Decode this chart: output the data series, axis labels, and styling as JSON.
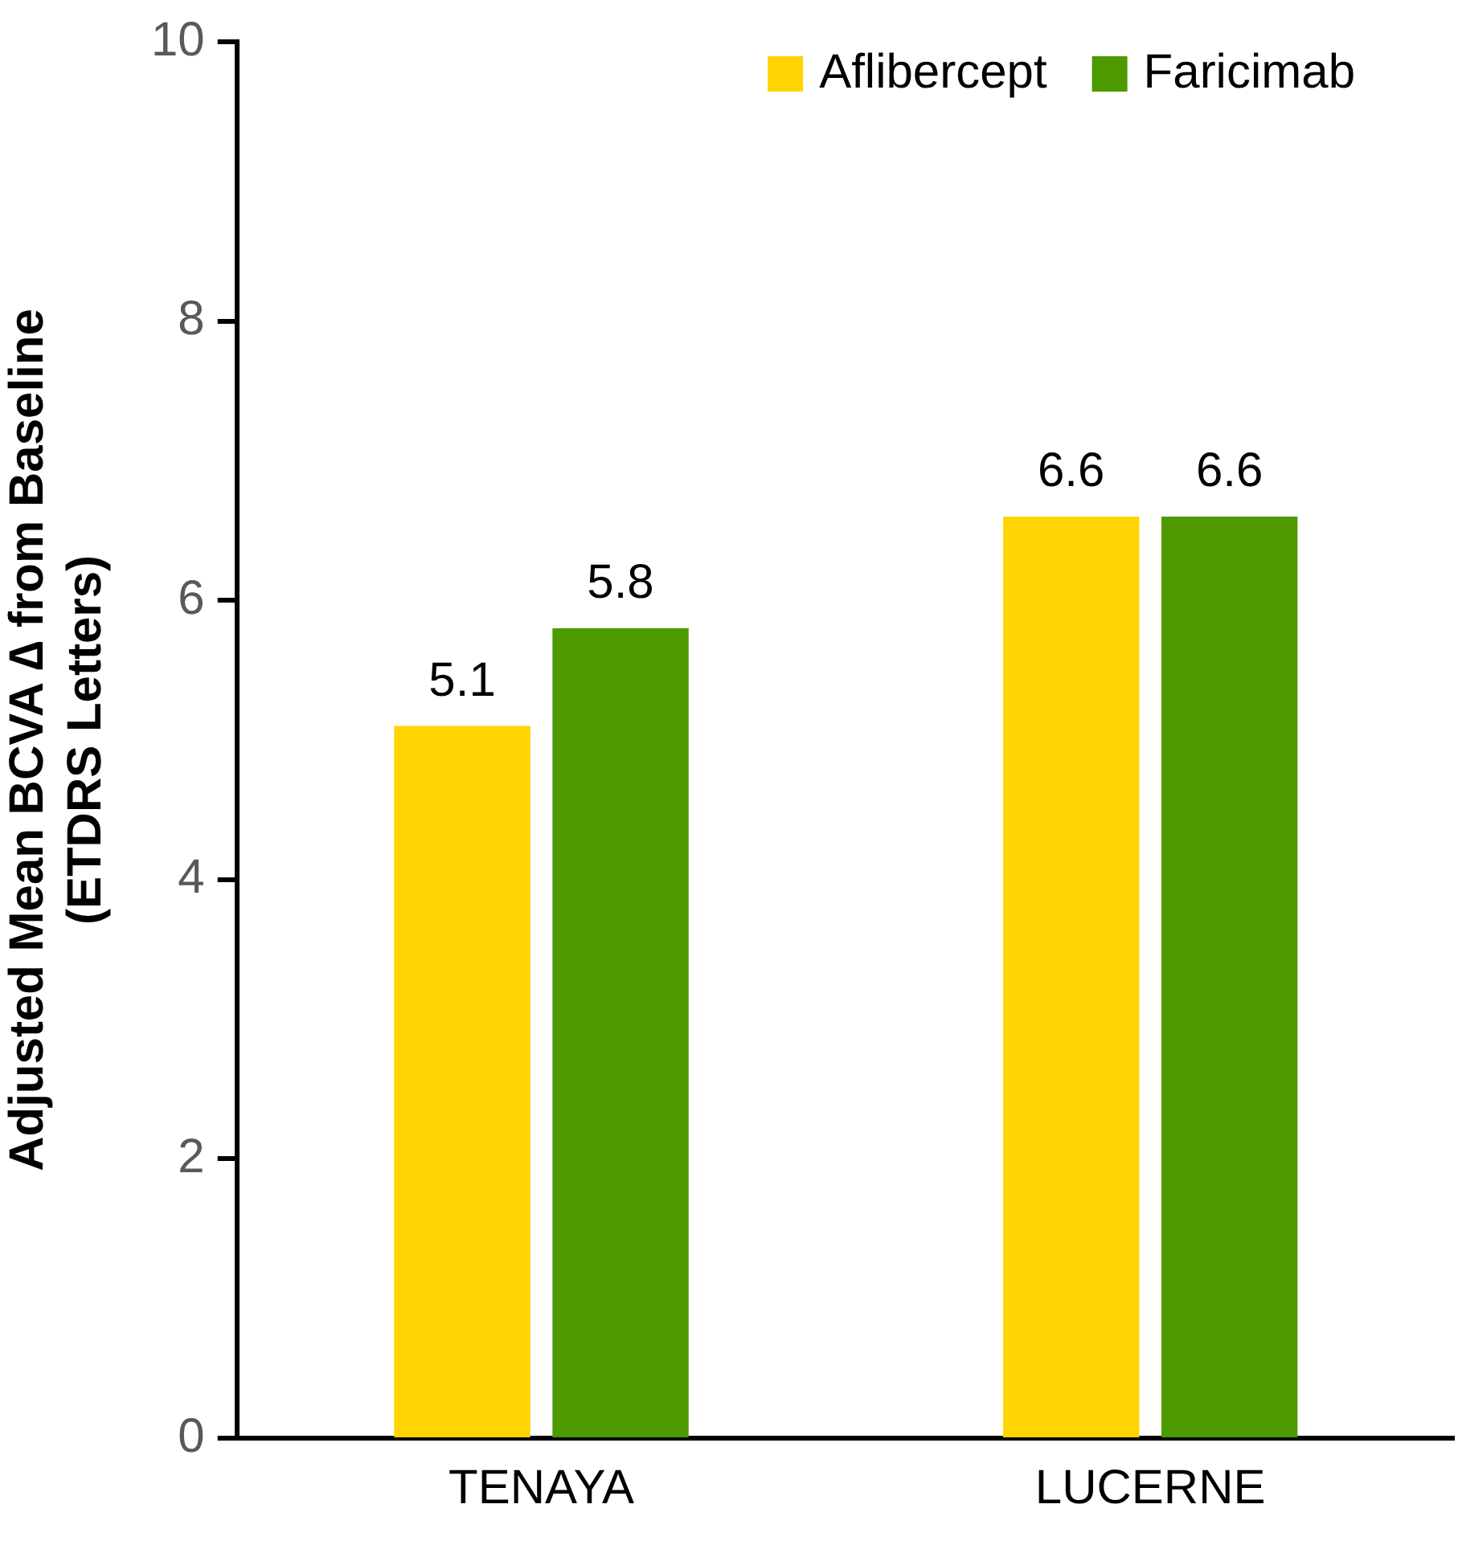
{
  "chart_data": {
    "type": "bar",
    "ylabel": "Adjusted Mean BCVA ∆ from Baseline\n(ETDRS Letters)",
    "categories": [
      "TENAYA",
      "LUCERNE"
    ],
    "series": [
      {
        "name": "Aflibercept",
        "color": "#ffd400",
        "values": [
          5.1,
          6.6
        ]
      },
      {
        "name": "Faricimab",
        "color": "#4c9900",
        "values": [
          5.8,
          6.6
        ]
      }
    ],
    "ylim": [
      0,
      10
    ],
    "yticks": [
      0,
      2,
      4,
      6,
      8,
      10
    ],
    "grid": false,
    "legend": "top right",
    "data_labels": true
  }
}
